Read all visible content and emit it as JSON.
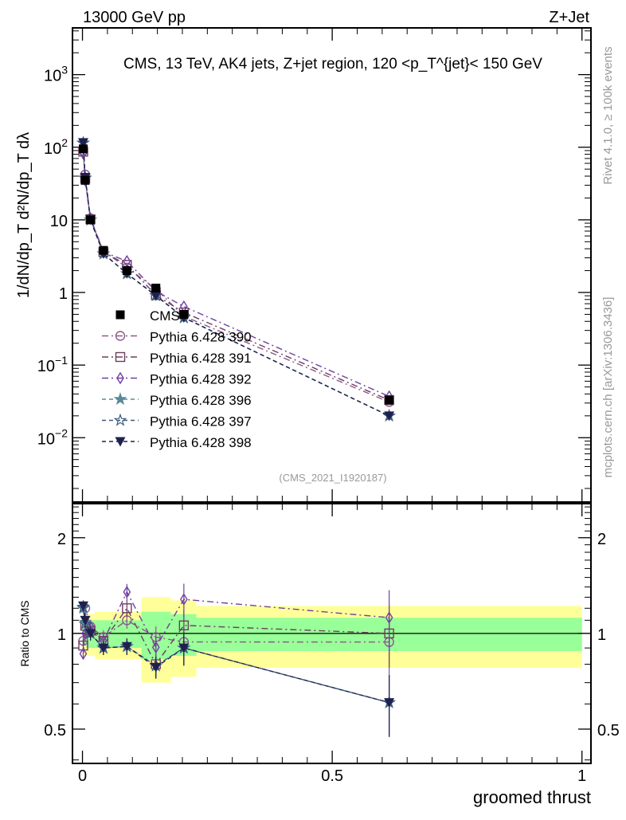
{
  "header": {
    "left": "13000 GeV pp",
    "right": "Z+Jet"
  },
  "side_labels": {
    "rivet": "Rivet 4.1.0, ≥ 100k events",
    "mcplots": "mcplots.cern.ch [arXiv:1306.3436]"
  },
  "chart_data": {
    "type": "line",
    "title": "CMS, 13 TeV, AK4 jets, Z+jet region, 120 <p_T^{jet}< 150 GeV",
    "analysis_id": "(CMS_2021_I1920187)",
    "xlabel": "groomed thrust",
    "ylabel": "1/dN/dp_T  d²N/dp_T dλ",
    "ratio_ylabel": "Ratio to CMS",
    "xlim": [
      -0.02,
      1.018
    ],
    "ylim": [
      0.0013,
      4400
    ],
    "yscale": "log",
    "ratio_ylim": [
      0.39,
      2.56
    ],
    "ratio_yscale": "log",
    "x_ticks": [
      "0",
      "0.5",
      "1"
    ],
    "y_ticks": [
      {
        "base": "10",
        "exp": "3",
        "v": 1000
      },
      {
        "base": "10",
        "exp": "2",
        "v": 100
      },
      {
        "base": "10",
        "exp": "",
        "v": 10
      },
      {
        "base": "1",
        "exp": "",
        "v": 1
      },
      {
        "base": "10",
        "exp": "−1",
        "v": 0.1
      },
      {
        "base": "10",
        "exp": "−2",
        "v": 0.01
      }
    ],
    "ratio_ticks": [
      {
        "label": "2",
        "v": 2
      },
      {
        "label": "1",
        "v": 1
      },
      {
        "label": "0.5",
        "v": 0.5
      }
    ],
    "legend_position": "middle-left",
    "bin_edges": [
      0,
      0.003,
      0.008,
      0.025,
      0.059,
      0.118,
      0.177,
      0.228,
      1.0
    ],
    "x": [
      0.0015,
      0.0055,
      0.016,
      0.042,
      0.089,
      0.147,
      0.203,
      0.614
    ],
    "data": {
      "name": "CMS",
      "color": "#000000",
      "values": [
        95,
        35,
        10,
        3.8,
        2.0,
        1.15,
        0.5,
        0.033
      ],
      "total_rel_unc": [
        0.15,
        0.15,
        0.15,
        0.17,
        0.17,
        0.3,
        0.27,
        0.22
      ],
      "stat_rel_unc": [
        0.08,
        0.08,
        0.1,
        0.1,
        0.1,
        0.17,
        0.15,
        0.12
      ]
    },
    "mc_rel_err": [
      0.04,
      0.05,
      0.05,
      0.05,
      0.06,
      0.08,
      0.12,
      0.22
    ],
    "series": [
      {
        "name": "Pythia 6.428 390",
        "color": "#8a5a8a",
        "marker": "circle-open",
        "dash": "dashdot",
        "values": [
          90,
          42,
          10.5,
          3.7,
          2.2,
          1.12,
          0.47,
          0.031
        ]
      },
      {
        "name": "Pythia 6.428 391",
        "color": "#6e3e5e",
        "marker": "square-open",
        "dash": "dashdot",
        "values": [
          87,
          37,
          10.2,
          3.6,
          2.4,
          0.92,
          0.53,
          0.033
        ]
      },
      {
        "name": "Pythia 6.428 392",
        "color": "#7040a0",
        "marker": "diamond-open",
        "dash": "dashdot",
        "values": [
          82,
          35,
          10.5,
          3.6,
          2.7,
          1.04,
          0.64,
          0.037
        ]
      },
      {
        "name": "Pythia 6.428 396",
        "color": "#5a8a9a",
        "marker": "star-filled",
        "dash": "dashed",
        "values": [
          114,
          38,
          10,
          3.42,
          1.82,
          0.91,
          0.45,
          0.02
        ]
      },
      {
        "name": "Pythia 6.428 397",
        "color": "#3a5a7a",
        "marker": "star-open",
        "dash": "dashed",
        "values": [
          115,
          37.5,
          10,
          3.42,
          1.82,
          0.91,
          0.45,
          0.02
        ]
      },
      {
        "name": "Pythia 6.428 398",
        "color": "#202050",
        "marker": "triangle-down-filled",
        "dash": "dashed",
        "values": [
          116,
          38.5,
          10,
          3.42,
          1.82,
          0.9,
          0.45,
          0.02
        ]
      }
    ]
  }
}
